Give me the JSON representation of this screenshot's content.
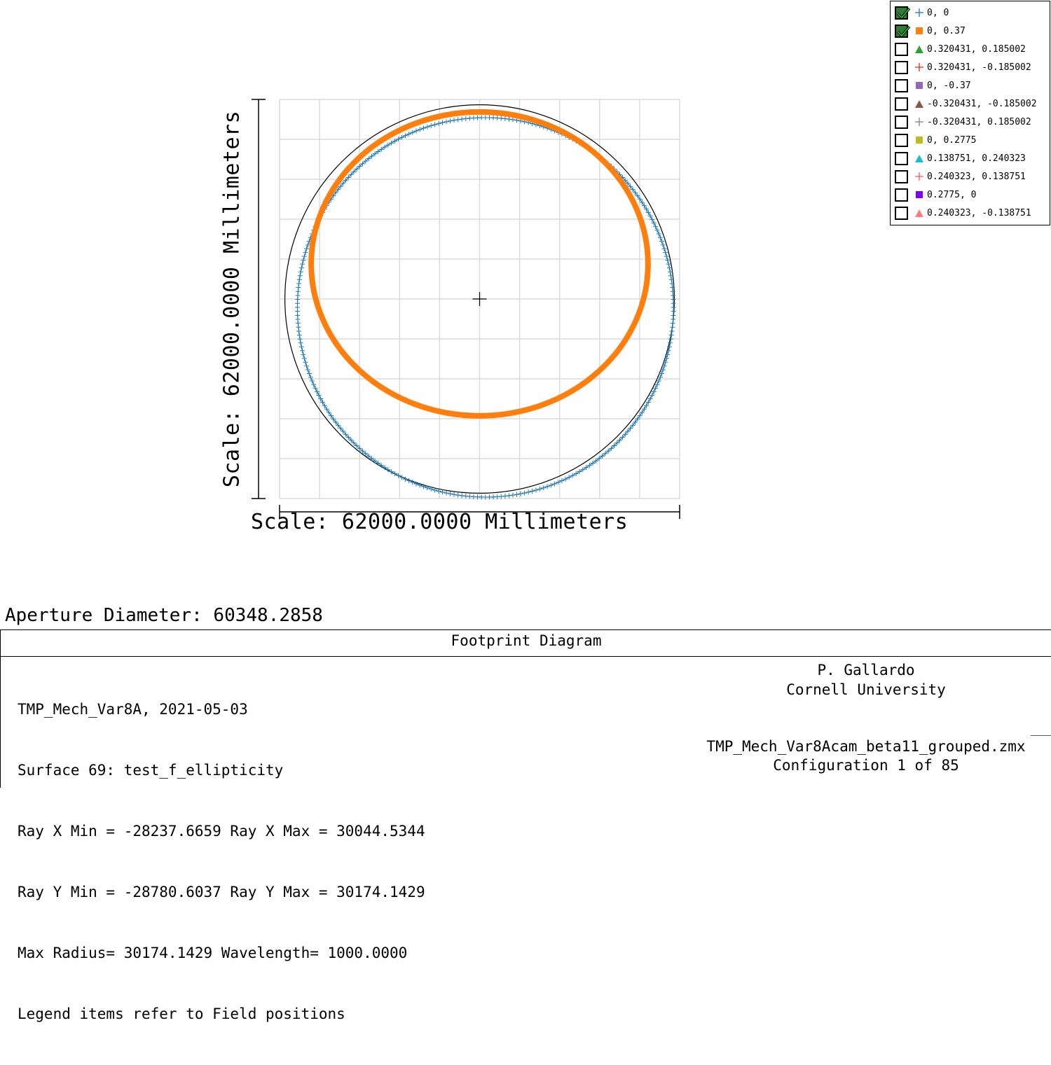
{
  "chart_data": {
    "type": "scatter",
    "title": "Footprint Diagram",
    "xlabel": "Scale: 62000.0000 Millimeters",
    "ylabel": "Scale: 62000.0000 Millimeters",
    "xlim": [
      -31000,
      31000
    ],
    "ylim": [
      -31000,
      31000
    ],
    "grid": true,
    "aperture_circle_radius": 30174.1429,
    "series": [
      {
        "name": "0, 0",
        "marker": "plus",
        "color": "#1f77b4",
        "shape": "ellipse",
        "center": [
          903,
          -1303
        ],
        "semi_axes": [
          29141,
          29478
        ],
        "visible": true
      },
      {
        "name": "0, 0.37",
        "marker": "square",
        "color": "#ff7f0e",
        "shape": "ellipse",
        "center": [
          0,
          5450
        ],
        "semi_axes": [
          26100,
          23600
        ],
        "visible": true
      }
    ],
    "center_marker": [
      0,
      0
    ]
  },
  "legend": {
    "items": [
      {
        "label": "0, 0",
        "checked": true,
        "marker": "plus",
        "color": "#1f77b4"
      },
      {
        "label": "0, 0.37",
        "checked": true,
        "marker": "square",
        "color": "#ff7f0e"
      },
      {
        "label": "0.320431, 0.185002",
        "checked": false,
        "marker": "triangle",
        "color": "#2ca02c"
      },
      {
        "label": "0.320431, -0.185002",
        "checked": false,
        "marker": "plus",
        "color": "#d62728"
      },
      {
        "label": "0, -0.37",
        "checked": false,
        "marker": "square",
        "color": "#9467bd"
      },
      {
        "label": "-0.320431, -0.185002",
        "checked": false,
        "marker": "triangle",
        "color": "#8c564b"
      },
      {
        "label": "-0.320431, 0.185002",
        "checked": false,
        "marker": "plus",
        "color": "#7f7f7f"
      },
      {
        "label": "0, 0.2775",
        "checked": false,
        "marker": "square",
        "color": "#bcbd22"
      },
      {
        "label": "0.138751, 0.240323",
        "checked": false,
        "marker": "triangle",
        "color": "#17becf"
      },
      {
        "label": "0.240323, 0.138751",
        "checked": false,
        "marker": "plus",
        "color": "#ff4f6f"
      },
      {
        "label": "0.2775, 0",
        "checked": false,
        "marker": "square",
        "color": "#7f00ff"
      },
      {
        "label": "0.240323, -0.138751",
        "checked": false,
        "marker": "triangle",
        "color": "#ff7f7f"
      }
    ]
  },
  "aperture_label": "Aperture Diameter: 60348.2858",
  "info": {
    "title": "Footprint Diagram",
    "lines": [
      "TMP_Mech_Var8A, 2021-05-03",
      "Surface 69: test_f_ellipticity",
      "Ray X Min = -28237.6659 Ray X Max = 30044.5344",
      "Ray Y Min = -28780.6037 Ray Y Max = 30174.1429",
      "Max Radius= 30174.1429 Wavelength= 1000.0000",
      "Legend items refer to Field positions"
    ],
    "author": "P. Gallardo",
    "org": "Cornell University",
    "file": "TMP_Mech_Var8Acam_beta11_grouped.zmx",
    "config": "Configuration 1 of 85"
  }
}
